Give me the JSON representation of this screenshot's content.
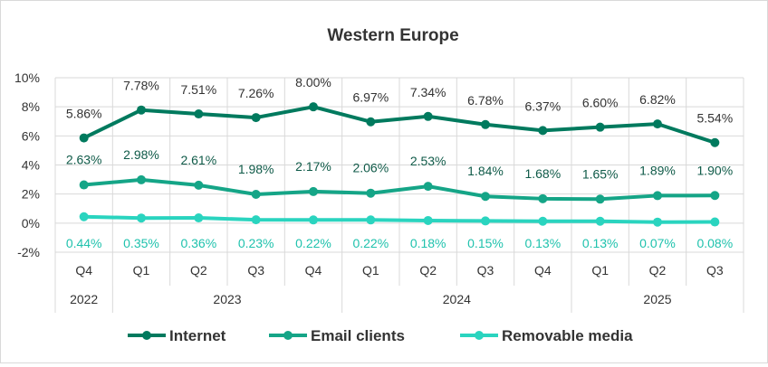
{
  "chart_data": {
    "type": "line",
    "title": "Western Europe",
    "quarters": [
      "Q4",
      "Q1",
      "Q2",
      "Q3",
      "Q4",
      "Q1",
      "Q2",
      "Q3",
      "Q4",
      "Q1",
      "Q2",
      "Q3"
    ],
    "years": [
      {
        "label": "2022",
        "start": 0,
        "end": 0
      },
      {
        "label": "2023",
        "start": 1,
        "end": 4
      },
      {
        "label": "2024",
        "start": 5,
        "end": 8
      },
      {
        "label": "2025",
        "start": 9,
        "end": 11
      }
    ],
    "y_ticks": [
      "10%",
      "8%",
      "6%",
      "4%",
      "2%",
      "0%",
      "-2%"
    ],
    "ylim": [
      -2,
      10
    ],
    "grid": true,
    "legend_position": "bottom",
    "series": [
      {
        "name": "Internet",
        "color": "#007a5e",
        "values": [
          5.86,
          7.78,
          7.51,
          7.26,
          8.0,
          6.97,
          7.34,
          6.78,
          6.37,
          6.6,
          6.82,
          5.54
        ],
        "labels": [
          "5.86%",
          "7.78%",
          "7.51%",
          "7.26%",
          "8.00%",
          "6.97%",
          "7.34%",
          "6.78%",
          "6.37%",
          "6.60%",
          "6.82%",
          "5.54%"
        ],
        "label_color": "#333333"
      },
      {
        "name": "Email clients",
        "color": "#15a587",
        "values": [
          2.63,
          2.98,
          2.61,
          1.98,
          2.17,
          2.06,
          2.53,
          1.84,
          1.68,
          1.65,
          1.89,
          1.9
        ],
        "labels": [
          "2.63%",
          "2.98%",
          "2.61%",
          "1.98%",
          "2.17%",
          "2.06%",
          "2.53%",
          "1.84%",
          "1.68%",
          "1.65%",
          "1.89%",
          "1.90%"
        ],
        "label_color": "#0f5a48"
      },
      {
        "name": "Removable media",
        "color": "#2ad4bf",
        "values": [
          0.44,
          0.35,
          0.36,
          0.23,
          0.22,
          0.22,
          0.18,
          0.15,
          0.13,
          0.13,
          0.07,
          0.08
        ],
        "labels": [
          "0.44%",
          "0.35%",
          "0.36%",
          "0.23%",
          "0.22%",
          "0.22%",
          "0.18%",
          "0.15%",
          "0.13%",
          "0.13%",
          "0.07%",
          "0.08%"
        ],
        "label_color": "#1fc2ad"
      }
    ]
  }
}
